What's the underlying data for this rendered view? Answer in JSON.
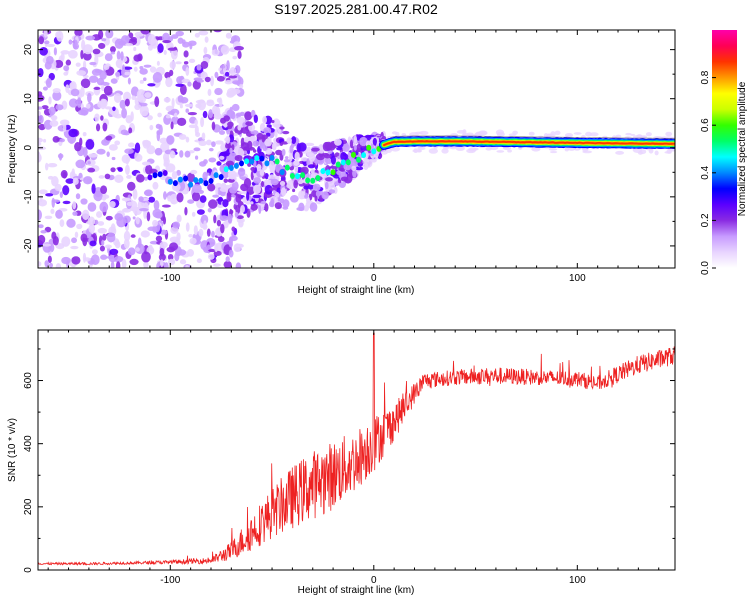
{
  "title": "S197.2025.281.00.47.R02",
  "chart_data": [
    {
      "type": "heatmap",
      "title": "S197.2025.281.00.47.R02",
      "xlabel": "Height of straight line (km)",
      "ylabel": "Frequency (Hz)",
      "xlim": [
        -165,
        148
      ],
      "ylim": [
        -24.5,
        24
      ],
      "x_ticks": [
        -100,
        0,
        100
      ],
      "x_tick_labels": [
        "-100",
        "0",
        "100"
      ],
      "y_ticks": [
        -20,
        -10,
        0,
        10,
        20
      ],
      "y_tick_labels": [
        "-20",
        "-10",
        "0",
        "10",
        "20"
      ],
      "description_points": {
        "noise_region_x": [
          -165,
          -75
        ],
        "transition_region_x": [
          -75,
          5
        ],
        "carrier_region_x": [
          5,
          148
        ],
        "carrier_frequency_hz": [
          0.5,
          2.0
        ]
      },
      "carrier_track": {
        "x": [
          -110,
          -100,
          -90,
          -80,
          -70,
          -60,
          -50,
          -40,
          -30,
          -20,
          -10,
          0,
          10,
          20,
          40,
          60,
          80,
          100,
          120,
          148
        ],
        "freq": [
          -6,
          -6,
          -7,
          -6,
          -4,
          -3,
          -3,
          -5,
          -6,
          -4,
          -2,
          0,
          1.2,
          1.3,
          1.3,
          1.2,
          1.1,
          1.0,
          0.9,
          0.8
        ]
      }
    },
    {
      "type": "line",
      "xlabel": "Height of straight line (km)",
      "ylabel": "SNR (10 * v/v)",
      "xlim": [
        -165,
        148
      ],
      "ylim": [
        0,
        760
      ],
      "x_ticks": [
        -100,
        0,
        100
      ],
      "x_tick_labels": [
        "-100",
        "0",
        "100"
      ],
      "y_ticks": [
        0,
        200,
        400,
        600
      ],
      "y_tick_labels": [
        "0",
        "200",
        "400",
        "600"
      ],
      "series": [
        {
          "name": "SNR",
          "color": "#ee2222",
          "envelope_x": [
            -165,
            -140,
            -120,
            -100,
            -80,
            -70,
            -60,
            -50,
            -40,
            -30,
            -20,
            -10,
            0,
            10,
            20,
            25,
            40,
            60,
            80,
            100,
            110,
            120,
            130,
            148
          ],
          "envelope_y": [
            20,
            20,
            22,
            25,
            30,
            60,
            120,
            180,
            230,
            270,
            300,
            340,
            400,
            470,
            560,
            600,
            610,
            615,
            610,
            605,
            590,
            620,
            650,
            680
          ],
          "noise_amp": [
            3,
            4,
            4,
            6,
            10,
            30,
            60,
            80,
            100,
            110,
            110,
            100,
            90,
            60,
            35,
            25,
            25,
            28,
            25,
            25,
            25,
            28,
            30,
            30
          ]
        }
      ]
    }
  ],
  "colorbar": {
    "label": "Normalized spectral amplitude",
    "ticks": [
      0.0,
      0.2,
      0.4,
      0.6,
      0.8
    ],
    "tick_labels": [
      "0.0",
      "0.2",
      "0.4",
      "0.6",
      "0.8"
    ],
    "range": [
      0,
      1
    ],
    "colors": [
      "#ffffff",
      "#e8d4ff",
      "#c79bff",
      "#8a2be2",
      "#5a00ff",
      "#0000ff",
      "#0088ff",
      "#00ffff",
      "#00ff66",
      "#33ff00",
      "#ccff00",
      "#ffff00",
      "#ff9900",
      "#ff3300",
      "#ff0055",
      "#ff00aa"
    ]
  }
}
